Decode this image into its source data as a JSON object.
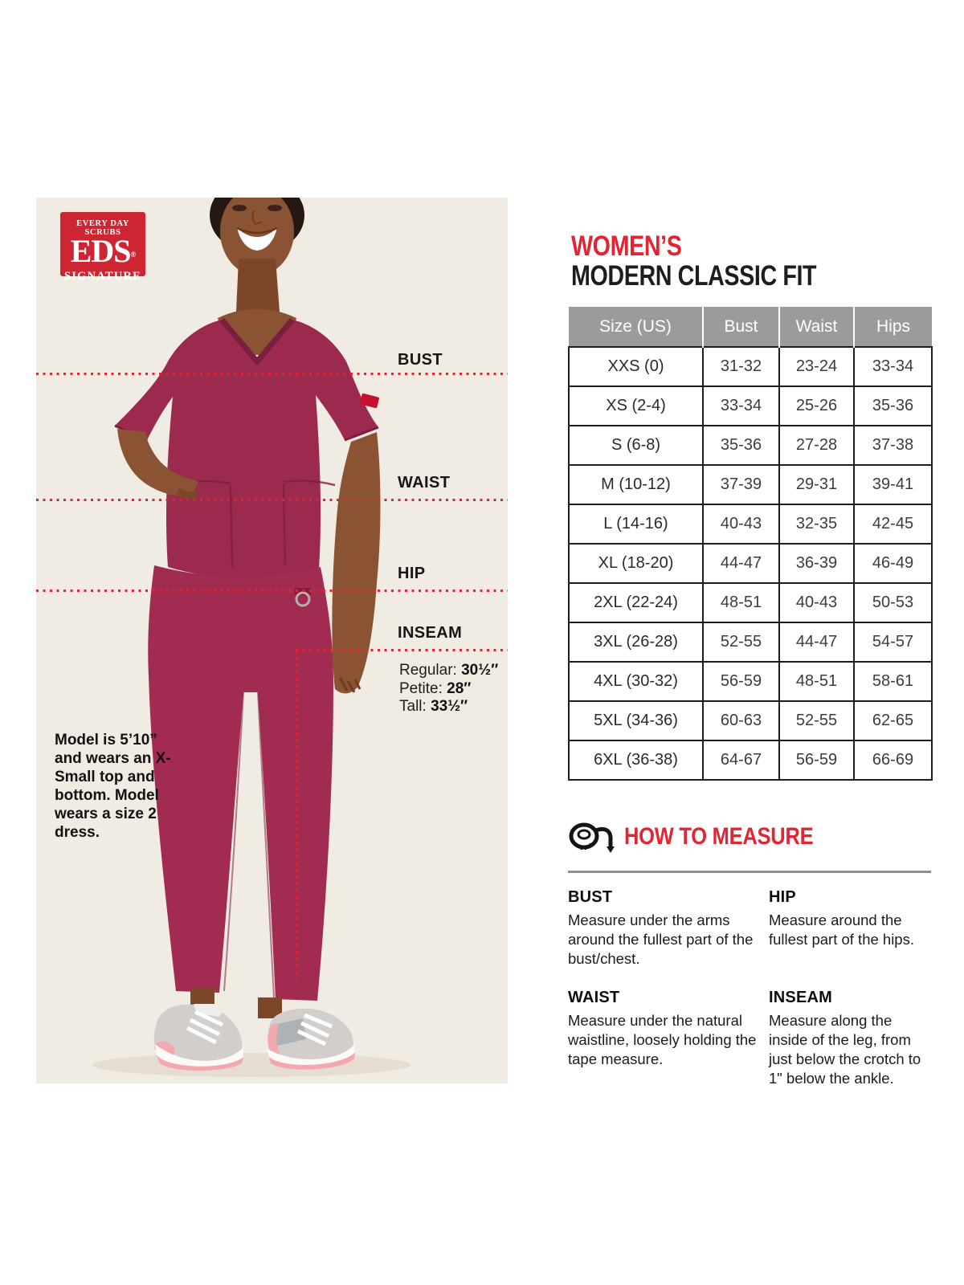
{
  "colors": {
    "accent_red": "#e22433",
    "logo_red": "#ce2533",
    "table_header_gray": "#9b9b9b",
    "scrub_wine": "#9c2a4e",
    "photo_background": "#f1ece3",
    "dotted_line_red": "#e02433"
  },
  "photo": {
    "logo": {
      "line1": "EVERY DAY SCRUBS",
      "line2": "EDS",
      "reg": "®",
      "line3": "SIGNATURE"
    },
    "labels": {
      "bust": "BUST",
      "waist": "WAIST",
      "hip": "HIP",
      "inseam": "INSEAM"
    },
    "inseam_options": [
      {
        "label": "Regular:",
        "value": "30½″"
      },
      {
        "label": "Petite:",
        "value": "28″"
      },
      {
        "label": "Tall:",
        "value": "33½″"
      }
    ],
    "model_note": "Model is 5’10” and wears an X-Small top and bottom. Model wears a size 2 dress."
  },
  "title": {
    "line1": "WOMEN’S",
    "line2": "MODERN CLASSIC FIT"
  },
  "size_table": {
    "headers": [
      "Size (US)",
      "Bust",
      "Waist",
      "Hips"
    ],
    "rows": [
      [
        "XXS (0)",
        "31-32",
        "23-24",
        "33-34"
      ],
      [
        "XS (2-4)",
        "33-34",
        "25-26",
        "35-36"
      ],
      [
        "S (6-8)",
        "35-36",
        "27-28",
        "37-38"
      ],
      [
        "M (10-12)",
        "37-39",
        "29-31",
        "39-41"
      ],
      [
        "L (14-16)",
        "40-43",
        "32-35",
        "42-45"
      ],
      [
        "XL (18-20)",
        "44-47",
        "36-39",
        "46-49"
      ],
      [
        "2XL (22-24)",
        "48-51",
        "40-43",
        "50-53"
      ],
      [
        "3XL (26-28)",
        "52-55",
        "44-47",
        "54-57"
      ],
      [
        "4XL (30-32)",
        "56-59",
        "48-51",
        "58-61"
      ],
      [
        "5XL (34-36)",
        "60-63",
        "52-55",
        "62-65"
      ],
      [
        "6XL (36-38)",
        "64-67",
        "56-59",
        "66-69"
      ]
    ]
  },
  "how_to_measure": {
    "heading": "HOW TO MEASURE",
    "icon": "tape-measure-icon",
    "items": [
      {
        "name": "BUST",
        "text": "Measure under the arms around the fullest part of the bust/chest."
      },
      {
        "name": "HIP",
        "text": "Measure around the fullest part of the hips."
      },
      {
        "name": "WAIST",
        "text": "Measure under the natural waistline, loosely holding the tape measure."
      },
      {
        "name": "INSEAM",
        "text": "Measure along the inside of the leg, from just below the crotch to 1\" below the ankle."
      }
    ]
  }
}
